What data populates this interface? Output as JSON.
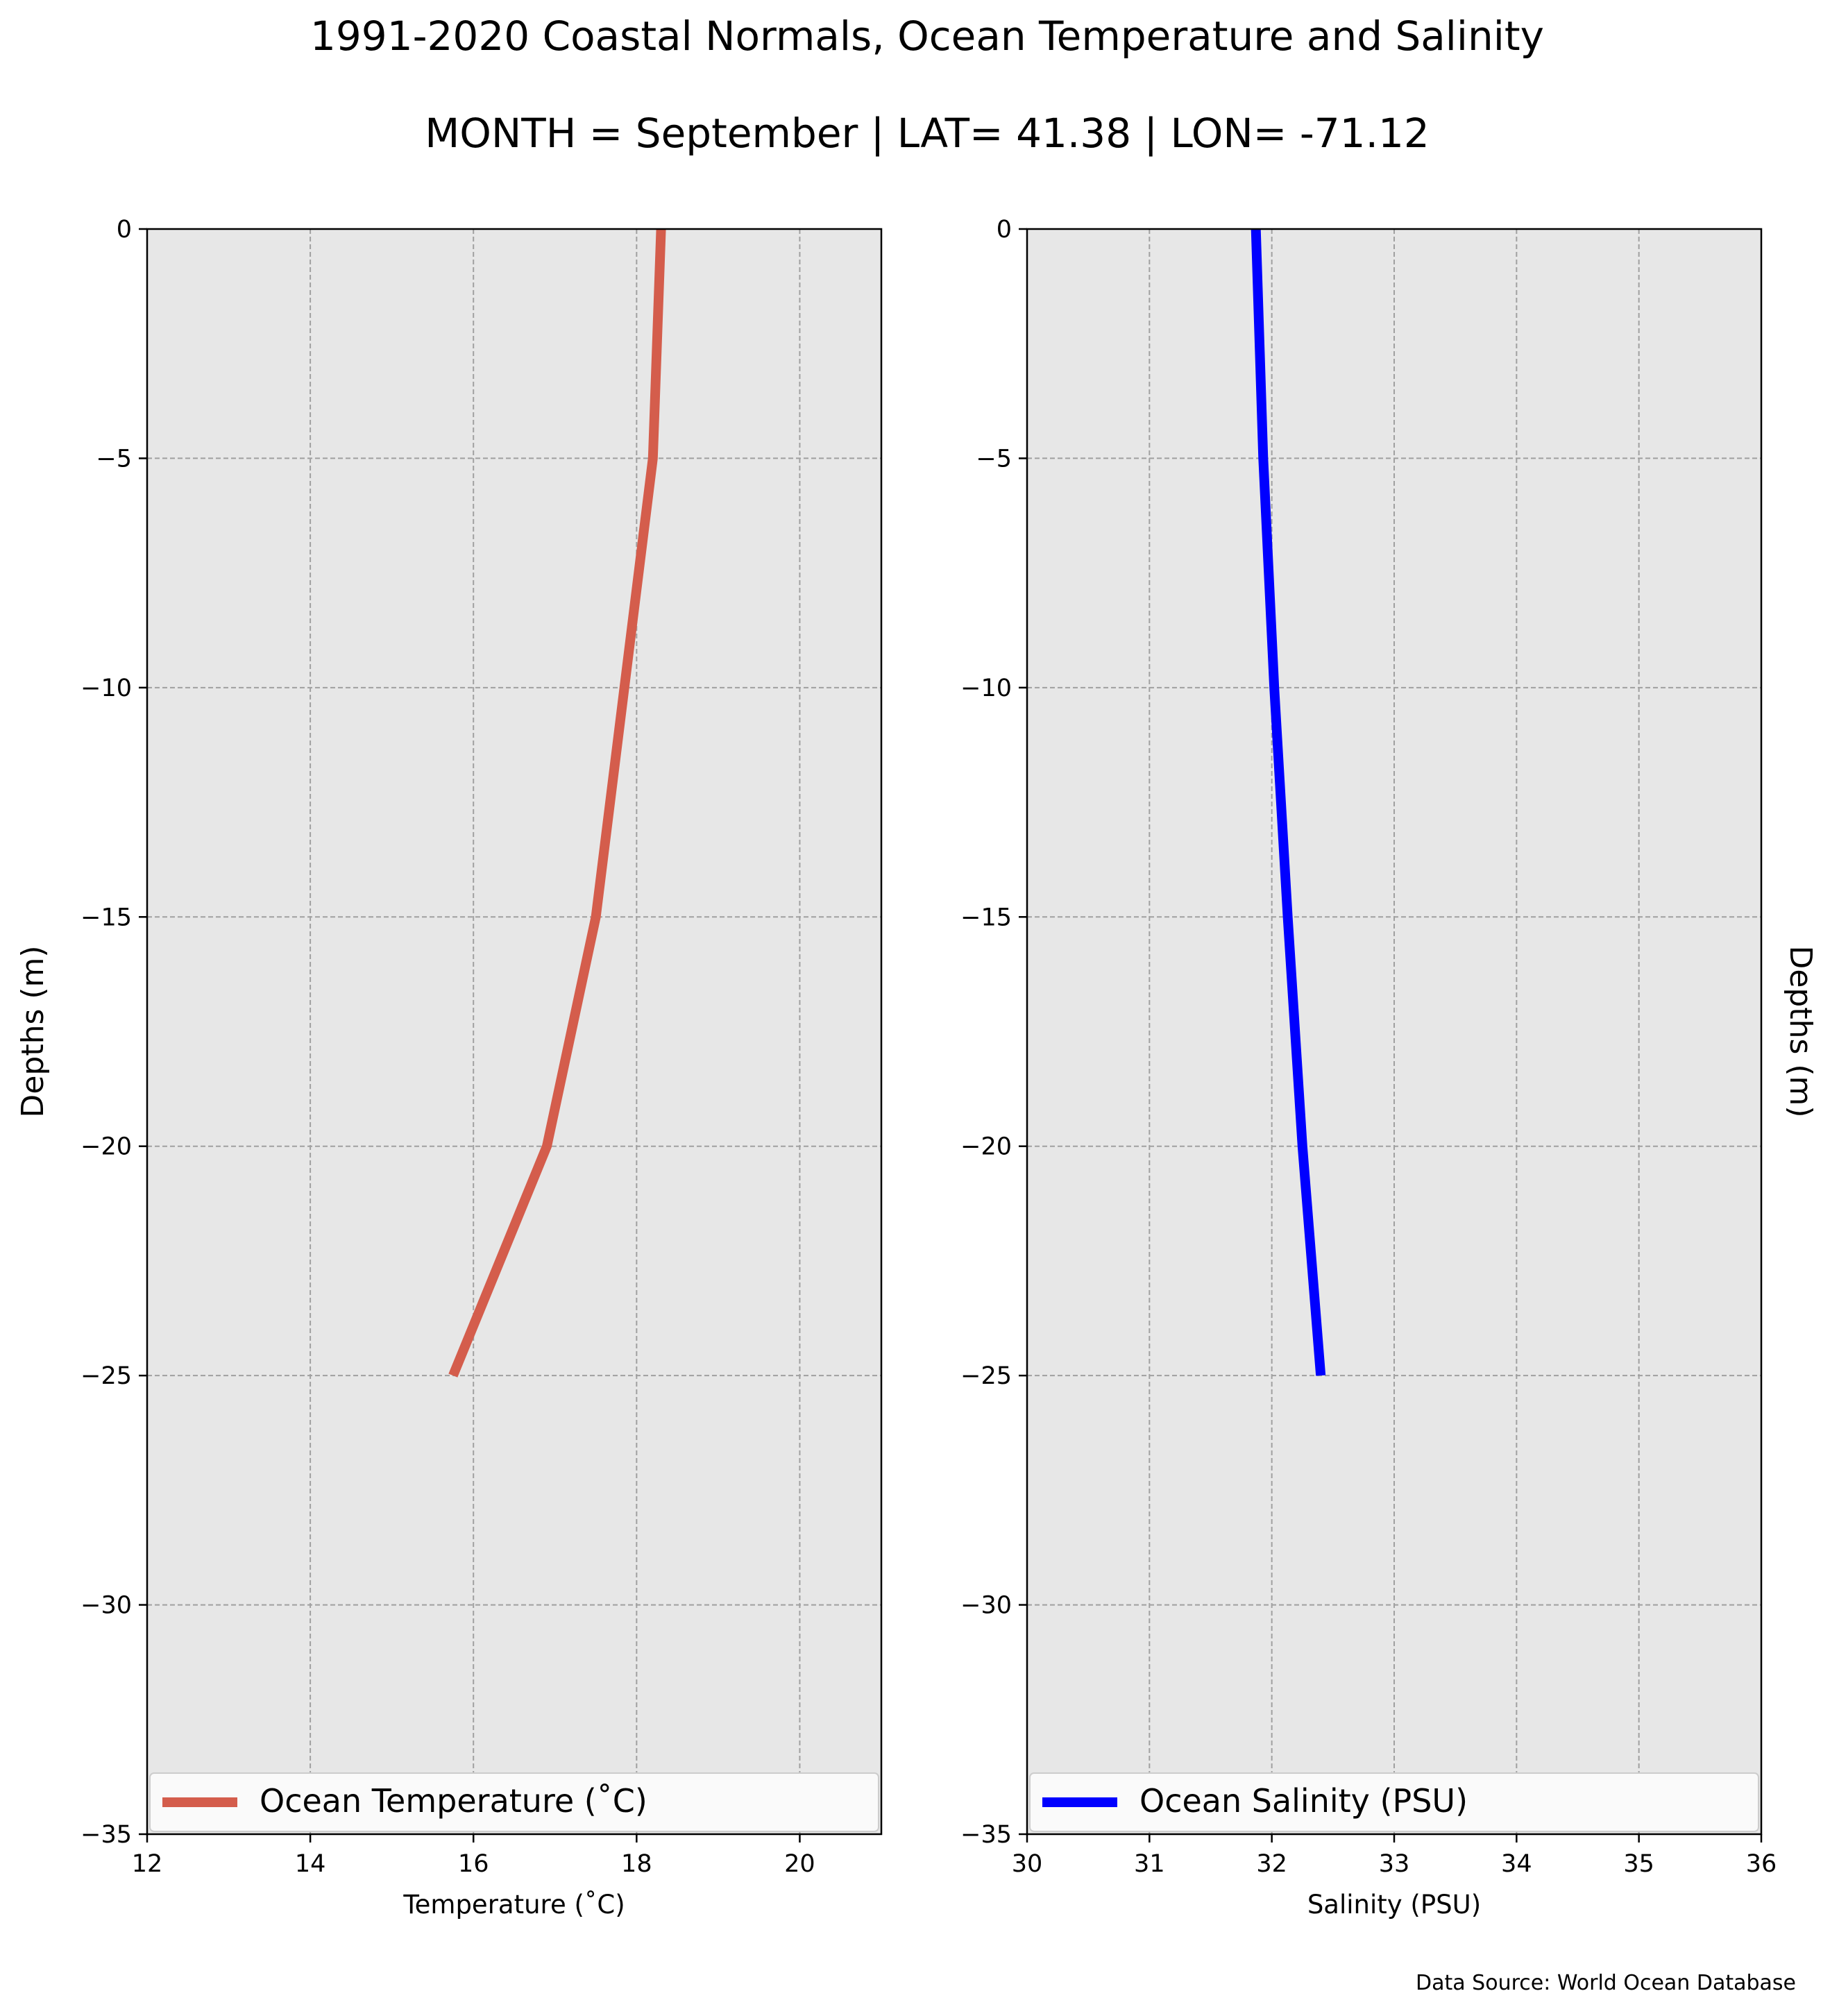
{
  "title": "1991-2020 Coastal Normals, Ocean Temperature and Salinity",
  "subtitle": "MONTH = September | LAT= 41.38 | LON= -71.12",
  "footer": "Data Source: World Ocean Database",
  "chart_data": [
    {
      "type": "line",
      "xlabel": "Temperature ($^\\circ$C)",
      "xlabel_display": "Temperature (˚C)",
      "ylabel": "Depths (m)",
      "xlim": [
        12,
        21
      ],
      "ylim": [
        -35,
        0
      ],
      "xticks": [
        12,
        14,
        16,
        18,
        20
      ],
      "yticks": [
        0,
        -5,
        -10,
        -15,
        -20,
        -25,
        -30,
        -35
      ],
      "ytick_labels": [
        "0",
        "−5",
        "−10",
        "−15",
        "−20",
        "−25",
        "−30",
        "−35"
      ],
      "grid": true,
      "legend_position": "lower-center",
      "series": [
        {
          "name": "Ocean Temperature (˚C)",
          "color": "#d45d4c",
          "x": [
            18.3,
            18.2,
            17.5,
            16.9,
            15.75
          ],
          "y": [
            0,
            -5,
            -15,
            -20,
            -25
          ]
        }
      ]
    },
    {
      "type": "line",
      "xlabel": "Salinity (PSU)",
      "ylabel": "Depths (m)",
      "xlim": [
        30,
        36
      ],
      "ylim": [
        -35,
        0
      ],
      "xticks": [
        30,
        31,
        32,
        33,
        34,
        35,
        36
      ],
      "yticks": [
        0,
        -5,
        -10,
        -15,
        -20,
        -25,
        -30,
        -35
      ],
      "ytick_labels": [
        "0",
        "−5",
        "−10",
        "−15",
        "−20",
        "−25",
        "−30",
        "−35"
      ],
      "grid": true,
      "legend_position": "lower-center",
      "series": [
        {
          "name": "Ocean Salinity (PSU)",
          "color": "#0000ff",
          "x": [
            31.87,
            31.93,
            32.02,
            32.13,
            32.25,
            32.4
          ],
          "y": [
            0,
            -5,
            -10,
            -15,
            -20,
            -25
          ]
        }
      ]
    }
  ]
}
